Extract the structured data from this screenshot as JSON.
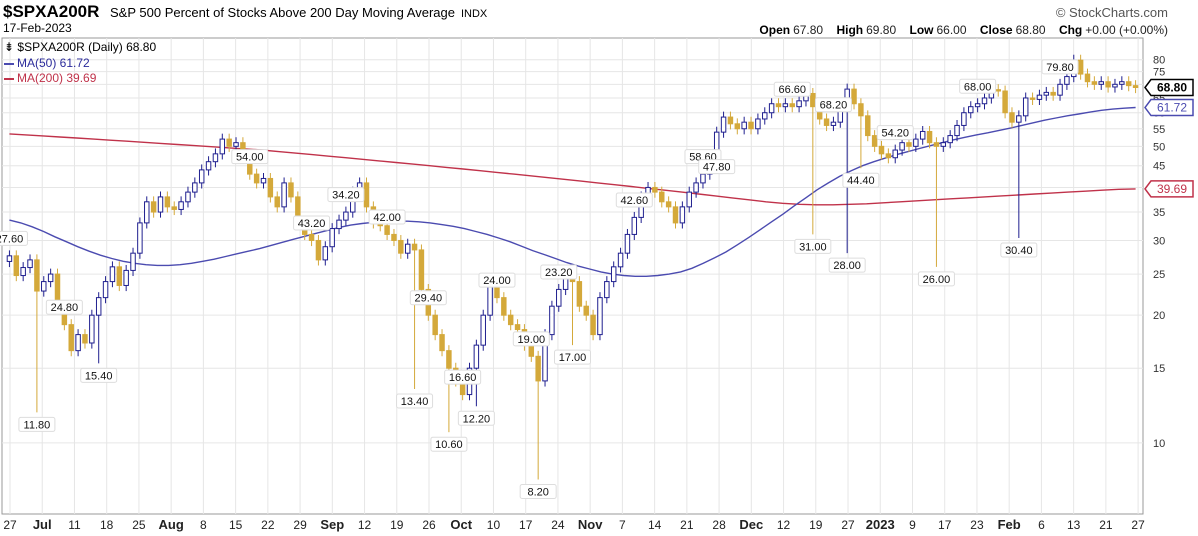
{
  "header": {
    "symbol": "$SPXA200R",
    "subtitle": "S&P 500 Percent of Stocks Above 200 Day Moving Average",
    "exchange": "INDX",
    "brand": "© StockCharts.com",
    "date": "17-Feb-2023",
    "ohlc": {
      "open_label": "Open",
      "open": "67.80",
      "high_label": "High",
      "high": "69.80",
      "low_label": "Low",
      "low": "66.00",
      "close_label": "Close",
      "close": "68.80",
      "chg_label": "Chg",
      "chg": "+0.00 (+0.00%)"
    }
  },
  "legend": {
    "main": "$SPXA200R (Daily) 68.80",
    "ma50": "MA(50) 61.72",
    "ma200": "MA(200) 39.69"
  },
  "colors": {
    "up": "#1f1f8f",
    "down": "#d4a93a",
    "ma50": "#4b4bb0",
    "ma200": "#c0324a",
    "grid": "#e6e6e6"
  },
  "chart_data": {
    "type": "candlestick",
    "y_scale": "log",
    "ylim": [
      6.8,
      90
    ],
    "y_ticks": [
      10,
      15,
      20,
      25,
      30,
      35,
      40,
      45,
      50,
      55,
      60,
      65,
      70,
      75,
      80
    ],
    "x_ticks": [
      "27",
      "Jul",
      "11",
      "18",
      "25",
      "Aug",
      "8",
      "15",
      "22",
      "29",
      "Sep",
      "12",
      "19",
      "26",
      "Oct",
      "10",
      "17",
      "24",
      "Nov",
      "7",
      "14",
      "21",
      "28",
      "Dec",
      "12",
      "19",
      "27",
      "2023",
      "9",
      "17",
      "23",
      "Feb",
      "6",
      "13",
      "21",
      "27"
    ],
    "bold_x_ticks": [
      "Jul",
      "Aug",
      "Sep",
      "Oct",
      "Nov",
      "Dec",
      "2023",
      "Feb"
    ],
    "axis_tags": [
      {
        "label": "68.80",
        "value": 68.8,
        "series": "close"
      },
      {
        "label": "61.72",
        "value": 61.72,
        "series": "ma50"
      },
      {
        "label": "39.69",
        "value": 39.69,
        "series": "ma200"
      }
    ],
    "close": [
      27.6,
      24.8,
      25.9,
      27.0,
      22.8,
      24.0,
      25.0,
      21.0,
      19.0,
      16.5,
      18.0,
      17.2,
      20.0,
      22.0,
      24.0,
      26.0,
      23.5,
      25.5,
      28.0,
      33.0,
      37.0,
      35.0,
      38.0,
      36.0,
      35.5,
      37.0,
      39.0,
      41.0,
      44.0,
      46.0,
      48.0,
      52.0,
      50.0,
      51.0,
      47.5,
      43.0,
      41.0,
      42.0,
      38.0,
      36.0,
      41.0,
      38.0,
      33.0,
      31.0,
      30.0,
      27.0,
      29.0,
      32.0,
      33.5,
      35.0,
      39.0,
      41.0,
      36.0,
      33.0,
      32.5,
      31.0,
      30.0,
      28.0,
      29.4,
      28.5,
      23.0,
      20.0,
      18.0,
      16.5,
      15.0,
      14.0,
      13.0,
      15.0,
      17.0,
      20.0,
      24.0,
      22.0,
      20.0,
      19.0,
      18.5,
      17.0,
      16.0,
      14.0,
      18.0,
      21.0,
      23.0,
      25.0,
      24.0,
      21.0,
      20.0,
      18.0,
      22.0,
      24.0,
      26.0,
      28.0,
      31.0,
      34.0,
      38.0,
      40.0,
      39.0,
      37.0,
      36.0,
      33.0,
      36.0,
      39.0,
      41.0,
      43.0,
      45.0,
      54.0,
      58.6,
      56.5,
      55.0,
      57.0,
      55.0,
      58.0,
      60.0,
      63.0,
      62.0,
      63.0,
      62.0,
      64.0,
      66.6,
      62.0,
      58.0,
      56.0,
      57.0,
      62.0,
      68.2,
      63.0,
      59.0,
      53.0,
      50.0,
      48.0,
      47.0,
      49.0,
      51.0,
      50.0,
      52.0,
      54.2,
      51.0,
      50.0,
      51.0,
      53.0,
      56.0,
      60.0,
      62.0,
      63.0,
      65.0,
      68.0,
      67.5,
      60.0,
      57.0,
      59.0,
      65.0,
      64.5,
      66.0,
      67.0,
      66.0,
      70.0,
      73.0,
      79.8,
      74.0,
      71.0,
      70.0,
      71.0,
      69.0,
      70.0,
      71.0,
      69.5,
      68.8
    ],
    "ma50": [
      33.5,
      33.0,
      32.3,
      31.5,
      30.6,
      29.8,
      29.0,
      28.3,
      27.7,
      27.2,
      26.8,
      26.5,
      26.3,
      26.2,
      26.2,
      26.3,
      26.5,
      26.8,
      27.1,
      27.5,
      27.9,
      28.3,
      28.7,
      29.2,
      29.7,
      30.2,
      30.7,
      31.2,
      31.7,
      32.2,
      32.6,
      32.9,
      33.1,
      33.2,
      33.3,
      33.3,
      33.2,
      33.0,
      32.7,
      32.4,
      32.0,
      31.5,
      31.0,
      30.4,
      29.8,
      29.1,
      28.4,
      27.8,
      27.2,
      26.6,
      26.1,
      25.7,
      25.3,
      25.0,
      24.8,
      24.7,
      24.7,
      24.8,
      25.0,
      25.3,
      25.8,
      26.5,
      27.3,
      28.2,
      29.3,
      30.5,
      31.8,
      33.2,
      34.6,
      36.2,
      37.8,
      39.5,
      41.0,
      42.5,
      43.8,
      45.0,
      46.0,
      46.9,
      47.8,
      48.6,
      49.4,
      50.2,
      51.0,
      51.8,
      52.5,
      53.2,
      53.8,
      54.5,
      55.2,
      56.0,
      56.8,
      57.6,
      58.3,
      59.0,
      59.6,
      60.2,
      60.8,
      61.2,
      61.5,
      61.72
    ],
    "ma200": [
      53.5,
      53.2,
      52.9,
      52.6,
      52.3,
      52.0,
      51.7,
      51.4,
      51.1,
      50.8,
      50.5,
      50.2,
      49.9,
      49.6,
      49.3,
      49.0,
      48.6,
      48.2,
      47.8,
      47.4,
      47.0,
      46.6,
      46.2,
      45.8,
      45.4,
      45.0,
      44.6,
      44.2,
      43.8,
      43.4,
      43.0,
      42.6,
      42.2,
      41.8,
      41.4,
      41.0,
      40.6,
      40.2,
      39.8,
      39.4,
      39.0,
      38.6,
      38.2,
      37.8,
      37.4,
      37.0,
      36.7,
      36.5,
      36.4,
      36.4,
      36.5,
      36.6,
      36.8,
      37.0,
      37.2,
      37.4,
      37.6,
      37.8,
      38.0,
      38.2,
      38.4,
      38.6,
      38.8,
      39.0,
      39.2,
      39.4,
      39.6,
      39.69
    ],
    "annotations": [
      {
        "label": "27.60",
        "index": 0,
        "pos": "above"
      },
      {
        "label": "24.80",
        "index": 8,
        "pos": "above"
      },
      {
        "label": "11.80",
        "index": 4,
        "pos": "below",
        "value": 11.8
      },
      {
        "label": "15.40",
        "index": 13,
        "pos": "below",
        "value": 15.4
      },
      {
        "label": "54.00",
        "index": 35,
        "pos": "above"
      },
      {
        "label": "43.20",
        "index": 44,
        "pos": "above"
      },
      {
        "label": "34.20",
        "index": 49,
        "pos": "above"
      },
      {
        "label": "42.00",
        "index": 55,
        "pos": "above"
      },
      {
        "label": "29.40",
        "index": 61,
        "pos": "above"
      },
      {
        "label": "13.40",
        "index": 59,
        "pos": "below",
        "value": 13.4
      },
      {
        "label": "16.60",
        "index": 66,
        "pos": "above"
      },
      {
        "label": "12.20",
        "index": 68,
        "pos": "below",
        "value": 12.2
      },
      {
        "label": "10.60",
        "index": 64,
        "pos": "below",
        "value": 10.6
      },
      {
        "label": "24.00",
        "index": 71,
        "pos": "above"
      },
      {
        "label": "19.00",
        "index": 76,
        "pos": "above"
      },
      {
        "label": "23.20",
        "index": 80,
        "pos": "above"
      },
      {
        "label": "17.00",
        "index": 82,
        "pos": "below",
        "value": 17.0
      },
      {
        "label": "8.20",
        "index": 77,
        "pos": "below",
        "value": 8.2
      },
      {
        "label": "42.60",
        "index": 91,
        "pos": "above"
      },
      {
        "label": "58.60",
        "index": 101,
        "pos": "above"
      },
      {
        "label": "47.80",
        "index": 103,
        "pos": "below",
        "value": 47.8
      },
      {
        "label": "66.60",
        "index": 114,
        "pos": "above"
      },
      {
        "label": "68.20",
        "index": 120,
        "pos": "above"
      },
      {
        "label": "31.00",
        "index": 117,
        "pos": "below",
        "value": 31.0
      },
      {
        "label": "28.00",
        "index": 122,
        "pos": "below",
        "value": 28.0
      },
      {
        "label": "44.40",
        "index": 124,
        "pos": "below",
        "value": 44.4
      },
      {
        "label": "54.20",
        "index": 129,
        "pos": "above"
      },
      {
        "label": "26.00",
        "index": 135,
        "pos": "below",
        "value": 26.0
      },
      {
        "label": "68.00",
        "index": 141,
        "pos": "above"
      },
      {
        "label": "30.40",
        "index": 147,
        "pos": "below",
        "value": 30.4
      },
      {
        "label": "79.80",
        "index": 153,
        "pos": "above"
      }
    ]
  }
}
